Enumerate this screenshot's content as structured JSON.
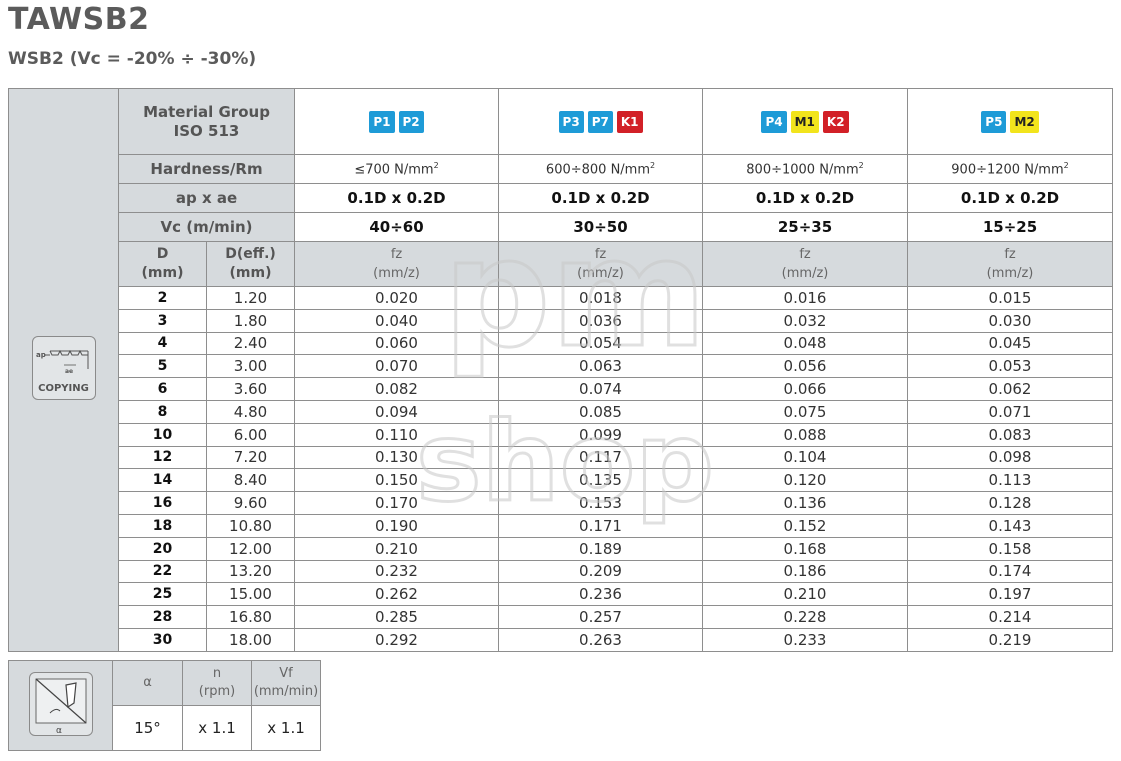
{
  "title": "TAWSB2",
  "subtitle": "WSB2 (Vc = -20% ÷ -30%)",
  "side_label": "COPYING",
  "row_labels": {
    "material": [
      "Material Group",
      "ISO 513"
    ],
    "hardness": "Hardness/Rm",
    "apae": "ap x ae",
    "vc": "Vc (m/min)",
    "d": [
      "D",
      "(mm)"
    ],
    "deff": [
      "D(eff.)",
      "(mm)"
    ],
    "fz": [
      "fz",
      "(mm/z)"
    ]
  },
  "groups": [
    {
      "badges": [
        {
          "text": "P1",
          "color": "blue"
        },
        {
          "text": "P2",
          "color": "blue"
        }
      ],
      "hardness": "≤700 N/mm",
      "apae": "0.1D x 0.2D",
      "vc": "40÷60"
    },
    {
      "badges": [
        {
          "text": "P3",
          "color": "blue"
        },
        {
          "text": "P7",
          "color": "blue"
        },
        {
          "text": "K1",
          "color": "red"
        }
      ],
      "hardness": "600÷800 N/mm",
      "apae": "0.1D x 0.2D",
      "vc": "30÷50"
    },
    {
      "badges": [
        {
          "text": "P4",
          "color": "blue"
        },
        {
          "text": "M1",
          "color": "yellow"
        },
        {
          "text": "K2",
          "color": "red"
        }
      ],
      "hardness": "800÷1000 N/mm",
      "apae": "0.1D x 0.2D",
      "vc": "25÷35"
    },
    {
      "badges": [
        {
          "text": "P5",
          "color": "blue"
        },
        {
          "text": "M2",
          "color": "yellow"
        }
      ],
      "hardness": "900÷1200 N/mm",
      "apae": "0.1D x 0.2D",
      "vc": "15÷25"
    }
  ],
  "hardness_exp": "2",
  "rows": [
    {
      "d": "2",
      "deff": "1.20",
      "fz": [
        "0.020",
        "0.018",
        "0.016",
        "0.015"
      ]
    },
    {
      "d": "3",
      "deff": "1.80",
      "fz": [
        "0.040",
        "0.036",
        "0.032",
        "0.030"
      ]
    },
    {
      "d": "4",
      "deff": "2.40",
      "fz": [
        "0.060",
        "0.054",
        "0.048",
        "0.045"
      ]
    },
    {
      "d": "5",
      "deff": "3.00",
      "fz": [
        "0.070",
        "0.063",
        "0.056",
        "0.053"
      ]
    },
    {
      "d": "6",
      "deff": "3.60",
      "fz": [
        "0.082",
        "0.074",
        "0.066",
        "0.062"
      ]
    },
    {
      "d": "8",
      "deff": "4.80",
      "fz": [
        "0.094",
        "0.085",
        "0.075",
        "0.071"
      ]
    },
    {
      "d": "10",
      "deff": "6.00",
      "fz": [
        "0.110",
        "0.099",
        "0.088",
        "0.083"
      ]
    },
    {
      "d": "12",
      "deff": "7.20",
      "fz": [
        "0.130",
        "0.117",
        "0.104",
        "0.098"
      ]
    },
    {
      "d": "14",
      "deff": "8.40",
      "fz": [
        "0.150",
        "0.135",
        "0.120",
        "0.113"
      ]
    },
    {
      "d": "16",
      "deff": "9.60",
      "fz": [
        "0.170",
        "0.153",
        "0.136",
        "0.128"
      ]
    },
    {
      "d": "18",
      "deff": "10.80",
      "fz": [
        "0.190",
        "0.171",
        "0.152",
        "0.143"
      ]
    },
    {
      "d": "20",
      "deff": "12.00",
      "fz": [
        "0.210",
        "0.189",
        "0.168",
        "0.158"
      ]
    },
    {
      "d": "22",
      "deff": "13.20",
      "fz": [
        "0.232",
        "0.209",
        "0.186",
        "0.174"
      ]
    },
    {
      "d": "25",
      "deff": "15.00",
      "fz": [
        "0.262",
        "0.236",
        "0.210",
        "0.197"
      ]
    },
    {
      "d": "28",
      "deff": "16.80",
      "fz": [
        "0.285",
        "0.257",
        "0.228",
        "0.214"
      ]
    },
    {
      "d": "30",
      "deff": "18.00",
      "fz": [
        "0.292",
        "0.263",
        "0.233",
        "0.219"
      ]
    }
  ],
  "small_table": {
    "icon_label": "α",
    "headers": [
      [
        "α"
      ],
      [
        "n",
        "(rpm)"
      ],
      [
        "Vf",
        "(mm/min)"
      ]
    ],
    "values": [
      "15°",
      "x 1.1",
      "x 1.1"
    ]
  },
  "watermark": [
    "pm",
    "shop"
  ],
  "colors": {
    "blue": "#1e9bd7",
    "yellow": "#f2e41c",
    "red": "#d22027",
    "header_gray": "#d6dadd"
  },
  "icons": [
    "copying-icon",
    "angle-tool-icon"
  ]
}
